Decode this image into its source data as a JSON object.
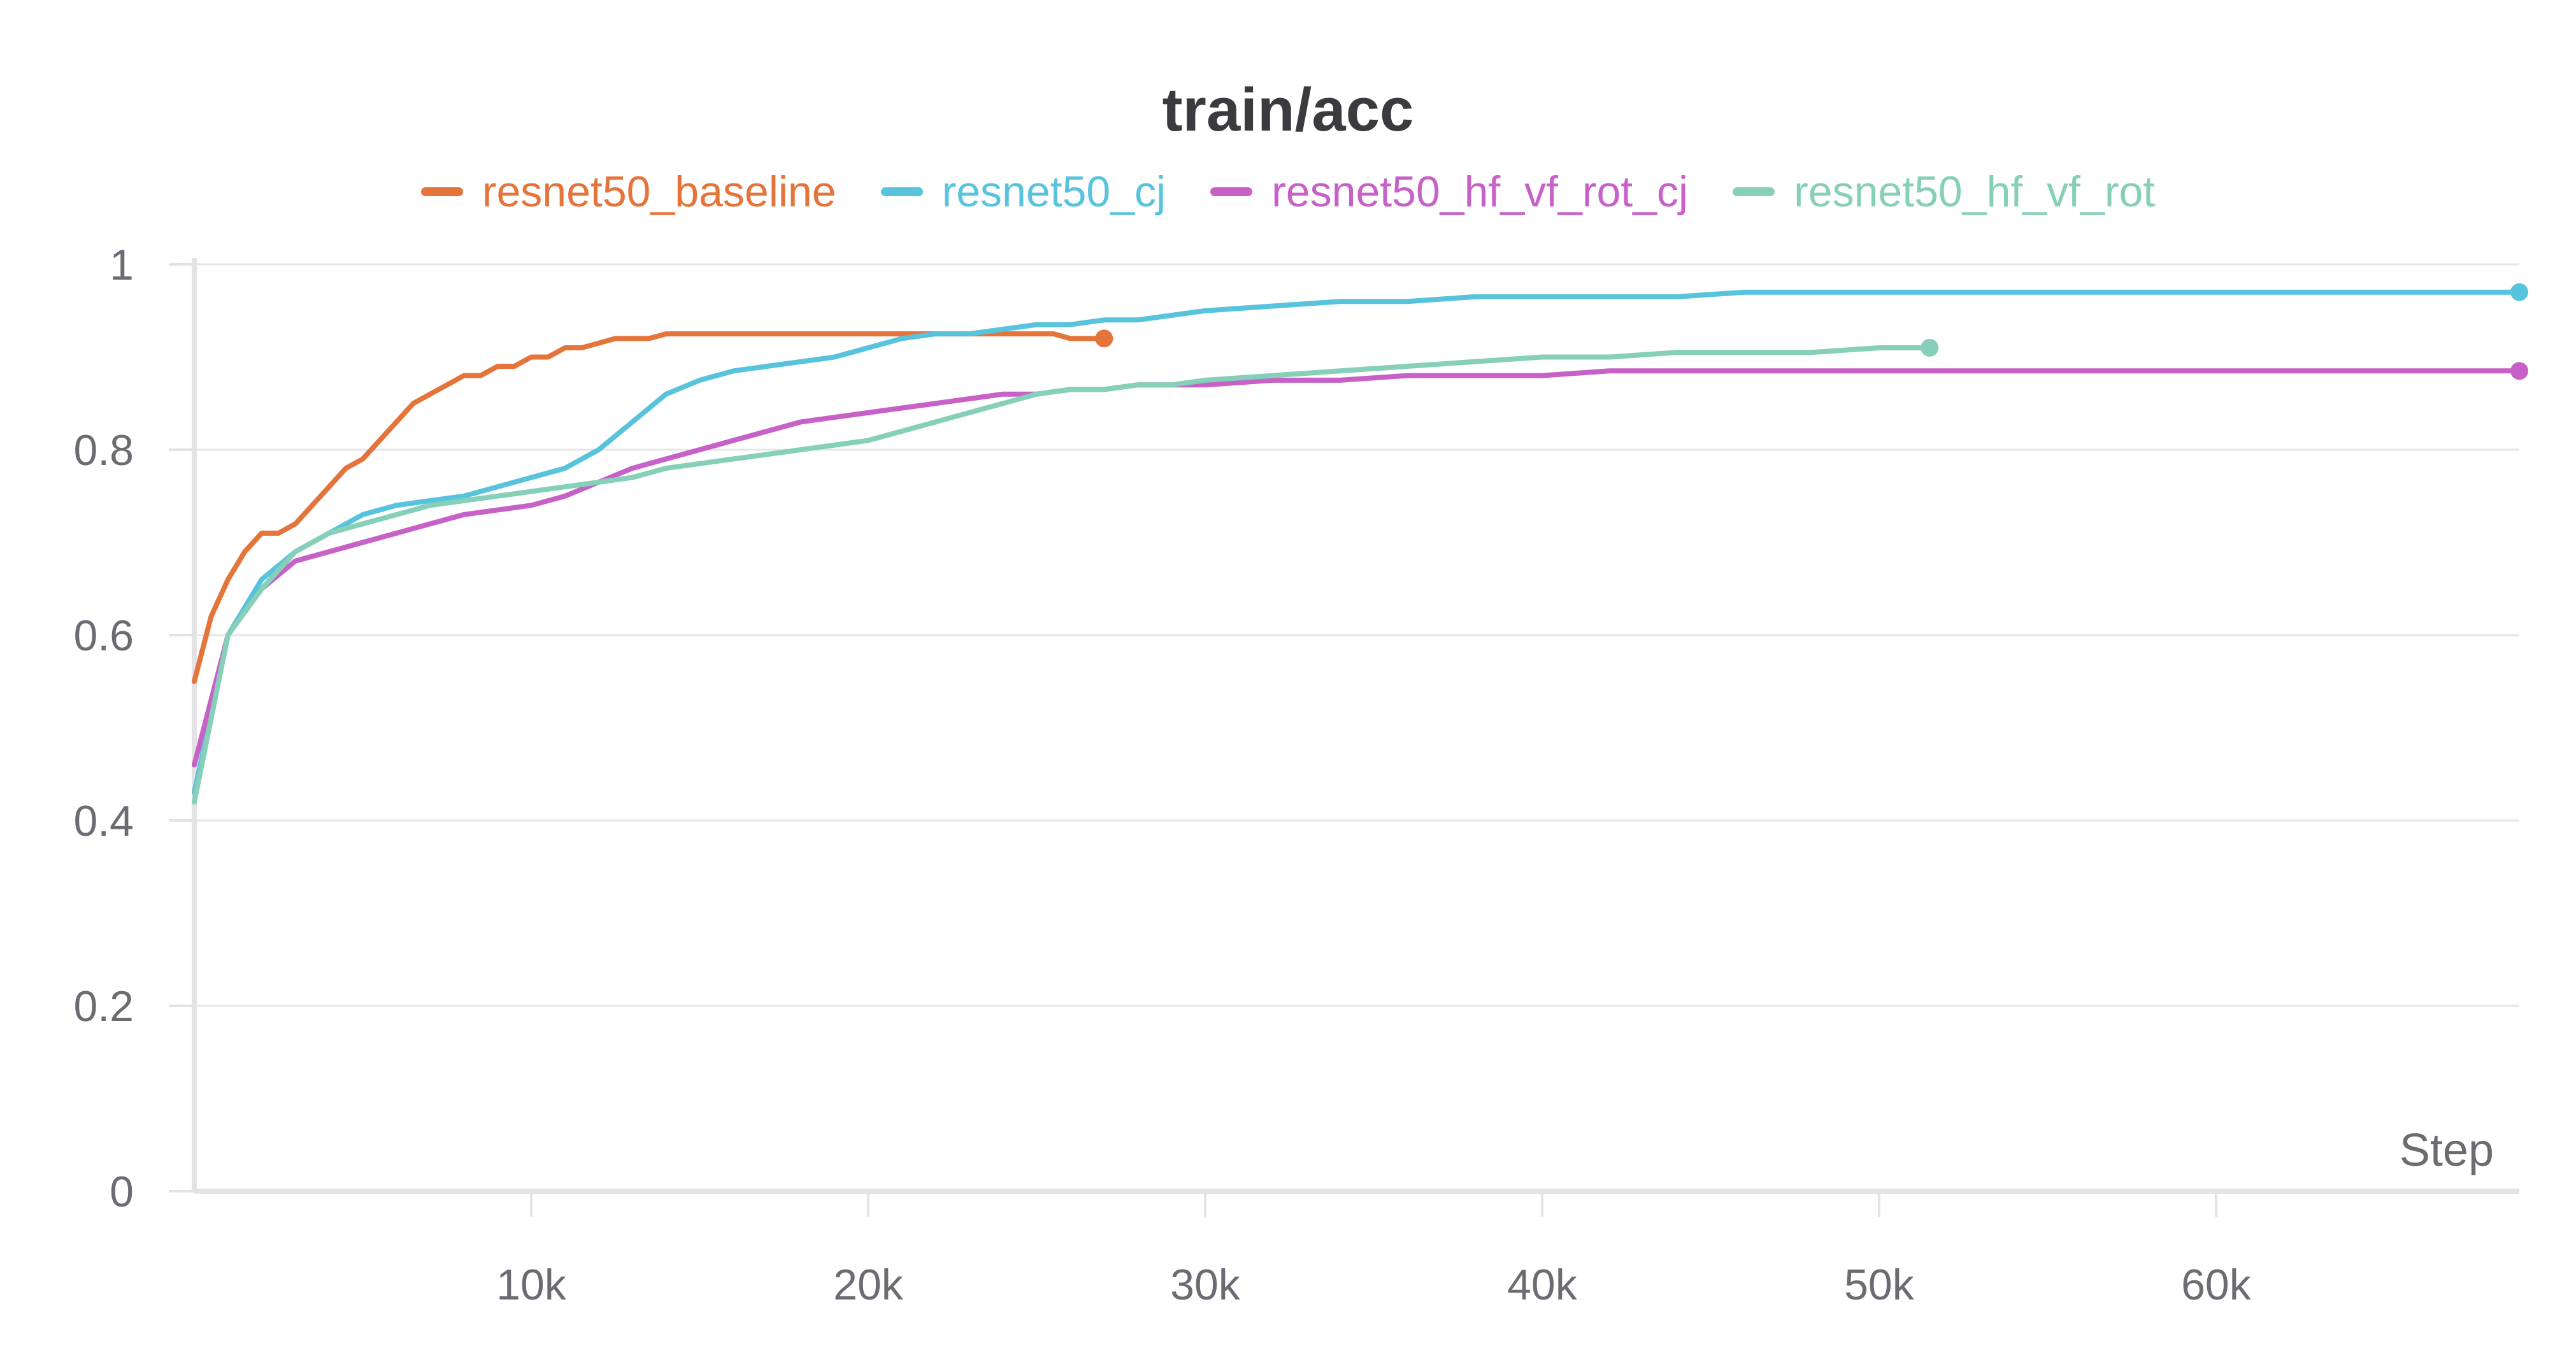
{
  "chart_data": {
    "type": "line",
    "title": "train/acc",
    "xlabel": "Step",
    "ylabel": "",
    "xlim": [
      0,
      69000
    ],
    "ylim": [
      0,
      1
    ],
    "grid": true,
    "legend_position": "top",
    "x_ticks": [
      10000,
      20000,
      30000,
      40000,
      50000,
      60000
    ],
    "x_tick_labels": [
      "10k",
      "20k",
      "30k",
      "40k",
      "50k",
      "60k"
    ],
    "y_ticks": [
      0,
      0.2,
      0.4,
      0.6,
      0.8,
      1
    ],
    "y_tick_labels": [
      "0",
      "0.2",
      "0.4",
      "0.6",
      "0.8",
      "1"
    ],
    "series": [
      {
        "name": "resnet50_baseline",
        "color": "#e5743b",
        "x": [
          0,
          500,
          1000,
          1500,
          2000,
          2500,
          3000,
          3500,
          4000,
          4500,
          5000,
          5500,
          6000,
          6500,
          7000,
          7500,
          8000,
          8500,
          9000,
          9500,
          10000,
          10500,
          11000,
          11500,
          12000,
          12500,
          13000,
          13500,
          14000,
          14500,
          15000,
          15500,
          16000,
          16500,
          17000,
          17500,
          18000,
          18500,
          19000,
          19500,
          20000,
          20500,
          21000,
          21500,
          22000,
          22500,
          23000,
          23500,
          24000,
          24500,
          25000,
          25500,
          26000,
          26500,
          27000
        ],
        "y": [
          0.55,
          0.62,
          0.66,
          0.69,
          0.71,
          0.71,
          0.72,
          0.74,
          0.76,
          0.78,
          0.79,
          0.81,
          0.83,
          0.85,
          0.86,
          0.87,
          0.88,
          0.88,
          0.89,
          0.89,
          0.9,
          0.9,
          0.91,
          0.91,
          0.915,
          0.92,
          0.92,
          0.92,
          0.925,
          0.925,
          0.925,
          0.925,
          0.925,
          0.925,
          0.925,
          0.925,
          0.925,
          0.925,
          0.925,
          0.925,
          0.925,
          0.925,
          0.925,
          0.925,
          0.925,
          0.925,
          0.925,
          0.925,
          0.925,
          0.925,
          0.925,
          0.925,
          0.92,
          0.92,
          0.92
        ]
      },
      {
        "name": "resnet50_cj",
        "color": "#58c3dc",
        "x": [
          0,
          1000,
          2000,
          3000,
          4000,
          5000,
          6000,
          7000,
          8000,
          9000,
          10000,
          11000,
          12000,
          13000,
          14000,
          15000,
          16000,
          17000,
          18000,
          19000,
          20000,
          21000,
          22000,
          23000,
          24000,
          25000,
          26000,
          27000,
          28000,
          29000,
          30000,
          32000,
          34000,
          36000,
          38000,
          40000,
          42000,
          44000,
          46000,
          48000,
          50000,
          52000,
          54000,
          56000,
          58000,
          60000,
          62000,
          64000,
          66000,
          68000,
          69000
        ],
        "y": [
          0.43,
          0.6,
          0.66,
          0.69,
          0.71,
          0.73,
          0.74,
          0.745,
          0.75,
          0.76,
          0.77,
          0.78,
          0.8,
          0.83,
          0.86,
          0.875,
          0.885,
          0.89,
          0.895,
          0.9,
          0.91,
          0.92,
          0.925,
          0.925,
          0.93,
          0.935,
          0.935,
          0.94,
          0.94,
          0.945,
          0.95,
          0.955,
          0.96,
          0.96,
          0.965,
          0.965,
          0.965,
          0.965,
          0.97,
          0.97,
          0.97,
          0.97,
          0.97,
          0.97,
          0.97,
          0.97,
          0.97,
          0.97,
          0.97,
          0.97,
          0.97
        ]
      },
      {
        "name": "resnet50_hf_vf_rot_cj",
        "color": "#c761c8",
        "x": [
          0,
          1000,
          2000,
          3000,
          4000,
          5000,
          6000,
          7000,
          8000,
          9000,
          10000,
          11000,
          12000,
          13000,
          14000,
          15000,
          16000,
          17000,
          18000,
          19000,
          20000,
          21000,
          22000,
          23000,
          24000,
          25000,
          26000,
          27000,
          28000,
          29000,
          30000,
          32000,
          34000,
          36000,
          38000,
          40000,
          42000,
          44000,
          46000,
          48000,
          50000,
          52000,
          54000,
          56000,
          58000,
          60000,
          62000,
          64000,
          66000,
          68000,
          69000
        ],
        "y": [
          0.46,
          0.6,
          0.65,
          0.68,
          0.69,
          0.7,
          0.71,
          0.72,
          0.73,
          0.735,
          0.74,
          0.75,
          0.765,
          0.78,
          0.79,
          0.8,
          0.81,
          0.82,
          0.83,
          0.835,
          0.84,
          0.845,
          0.85,
          0.855,
          0.86,
          0.86,
          0.865,
          0.865,
          0.87,
          0.87,
          0.87,
          0.875,
          0.875,
          0.88,
          0.88,
          0.88,
          0.885,
          0.885,
          0.885,
          0.885,
          0.885,
          0.885,
          0.885,
          0.885,
          0.885,
          0.885,
          0.885,
          0.885,
          0.885,
          0.885,
          0.885
        ]
      },
      {
        "name": "resnet50_hf_vf_rot",
        "color": "#86cfb8",
        "x": [
          0,
          1000,
          2000,
          3000,
          4000,
          5000,
          6000,
          7000,
          8000,
          9000,
          10000,
          11000,
          12000,
          13000,
          14000,
          15000,
          16000,
          17000,
          18000,
          19000,
          20000,
          21000,
          22000,
          23000,
          24000,
          25000,
          26000,
          27000,
          28000,
          29000,
          30000,
          32000,
          34000,
          36000,
          38000,
          40000,
          42000,
          44000,
          46000,
          48000,
          50000,
          51500
        ],
        "y": [
          0.42,
          0.6,
          0.65,
          0.69,
          0.71,
          0.72,
          0.73,
          0.74,
          0.745,
          0.75,
          0.755,
          0.76,
          0.765,
          0.77,
          0.78,
          0.785,
          0.79,
          0.795,
          0.8,
          0.805,
          0.81,
          0.82,
          0.83,
          0.84,
          0.85,
          0.86,
          0.865,
          0.865,
          0.87,
          0.87,
          0.875,
          0.88,
          0.885,
          0.89,
          0.895,
          0.9,
          0.9,
          0.905,
          0.905,
          0.905,
          0.91,
          0.91
        ]
      }
    ]
  }
}
